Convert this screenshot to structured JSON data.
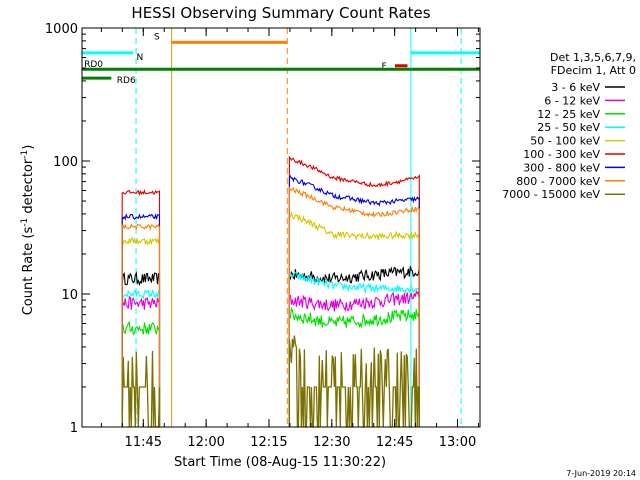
{
  "chart_data": {
    "type": "line",
    "title": "HESSI Observing Summary Count Rates",
    "xlabel": "Start Time (08-Aug-15 11:30:22)",
    "ylabel_main": "Count Rate (s",
    "ylabel_sup1": "-1",
    "ylabel_mid": " detector",
    "ylabel_sup2": "-1",
    "ylabel_end": ")",
    "yscale": "log",
    "ylim": [
      1,
      1000
    ],
    "y_ticks": [
      {
        "value": 1,
        "label": "1"
      },
      {
        "value": 10,
        "label": "10"
      },
      {
        "value": 100,
        "label": "100"
      },
      {
        "value": 1000,
        "label": "1000"
      }
    ],
    "xlim_minutes": [
      0,
      95
    ],
    "x_ticks": [
      {
        "minute": 14.63,
        "label": "11:45"
      },
      {
        "minute": 29.63,
        "label": "12:00"
      },
      {
        "minute": 44.63,
        "label": "12:15"
      },
      {
        "minute": 59.63,
        "label": "12:30"
      },
      {
        "minute": 74.63,
        "label": "12:45"
      },
      {
        "minute": 89.63,
        "label": "13:00"
      }
    ],
    "legend": {
      "position": "right",
      "header": [
        "Det 1,3,5,6,7,9,",
        "FDecim 1, Att 0"
      ],
      "entries": [
        {
          "label": "3 - 6 keV",
          "color": "#000000"
        },
        {
          "label": "6 - 12 keV",
          "color": "#e000e0"
        },
        {
          "label": "12 - 25 keV",
          "color": "#00e000"
        },
        {
          "label": "25 - 50 keV",
          "color": "#00ffff"
        },
        {
          "label": "50 - 100 keV",
          "color": "#d4c800"
        },
        {
          "label": "100 - 300 keV",
          "color": "#e00000"
        },
        {
          "label": "300 - 800 keV",
          "color": "#0000e0"
        },
        {
          "label": "800 - 7000 keV",
          "color": "#ff8000"
        },
        {
          "label": "7000 - 15000 keV",
          "color": "#7a7000"
        }
      ]
    },
    "segments": [
      {
        "start": 9.6,
        "end": 18.5
      },
      {
        "start": 49.5,
        "end": 80.5
      }
    ],
    "series": [
      {
        "name": "3 - 6 keV",
        "color": "#000000",
        "seg1": [
          13,
          13
        ],
        "seg2": [
          14,
          13,
          14,
          15
        ],
        "noise": 0.09
      },
      {
        "name": "6 - 12 keV",
        "color": "#e000e0",
        "seg1": [
          8.5,
          8.5
        ],
        "seg2": [
          9,
          8.2,
          8.8,
          9.5
        ],
        "noise": 0.1
      },
      {
        "name": "12 - 25 keV",
        "color": "#00e000",
        "seg1": [
          5.5,
          5.5
        ],
        "seg2": [
          7,
          6,
          6.5,
          7
        ],
        "noise": 0.1
      },
      {
        "name": "25 - 50 keV",
        "color": "#00ffff",
        "seg1": [
          10,
          10
        ],
        "seg2": [
          14,
          11.5,
          11,
          11
        ],
        "noise": 0.06
      },
      {
        "name": "50 - 100 keV",
        "color": "#d4c800",
        "seg1": [
          25,
          25
        ],
        "seg2": [
          40,
          28,
          27,
          28
        ],
        "noise": 0.05
      },
      {
        "name": "100 - 300 keV",
        "color": "#e00000",
        "seg1": [
          58,
          58
        ],
        "seg2": [
          105,
          75,
          65,
          75
        ],
        "noise": 0.03
      },
      {
        "name": "300 - 800 keV",
        "color": "#0000e0",
        "seg1": [
          38,
          38
        ],
        "seg2": [
          75,
          55,
          48,
          52
        ],
        "noise": 0.035
      },
      {
        "name": "800 - 7000 keV",
        "color": "#ff8000",
        "seg1": [
          32,
          32
        ],
        "seg2": [
          62,
          45,
          39,
          44
        ],
        "noise": 0.035
      },
      {
        "name": "7000 - 15000 keV",
        "color": "#7a7000",
        "seg1": [
          1.6,
          1.6
        ],
        "seg2": [
          3,
          1.8,
          1.6,
          1.7
        ],
        "noise": 0.25
      }
    ],
    "flags": [
      {
        "label": "N",
        "color": "#00ffff",
        "value": 650,
        "start": 0,
        "end": 12.2,
        "label_minute": 13.0
      },
      {
        "label": "",
        "color": "#00ffff",
        "value": 650,
        "start": 78.5,
        "end": 95,
        "label_minute": 0
      },
      {
        "label": "S",
        "color": "#ff8000",
        "value": 780,
        "start": 21.4,
        "end": 49.0,
        "label_minute": 17.2
      },
      {
        "label": "F",
        "color": "#e00000",
        "value": 520,
        "start": 74.7,
        "end": 77.7,
        "label_minute": 71.5
      },
      {
        "label": "RD0",
        "color": "#008000",
        "value": 490,
        "start": 0,
        "end": 95,
        "label_minute": 0.5
      },
      {
        "label": "RD6",
        "color": "#008000",
        "value": 420,
        "start": 0,
        "end": 7.0,
        "label_minute": 8.3
      }
    ],
    "vlines": [
      {
        "minute": 12.9,
        "color": "#00ffff",
        "dash": true
      },
      {
        "minute": 21.4,
        "color": "#c8a000",
        "dash": false
      },
      {
        "minute": 49.0,
        "color": "#ff8000",
        "dash": true
      },
      {
        "minute": 78.5,
        "color": "#00ffff",
        "dash": false
      },
      {
        "minute": 90.5,
        "color": "#00ffff",
        "dash": true
      }
    ],
    "grid": false
  },
  "footer": {
    "timestamp": "7-Jun-2019 20:14"
  }
}
